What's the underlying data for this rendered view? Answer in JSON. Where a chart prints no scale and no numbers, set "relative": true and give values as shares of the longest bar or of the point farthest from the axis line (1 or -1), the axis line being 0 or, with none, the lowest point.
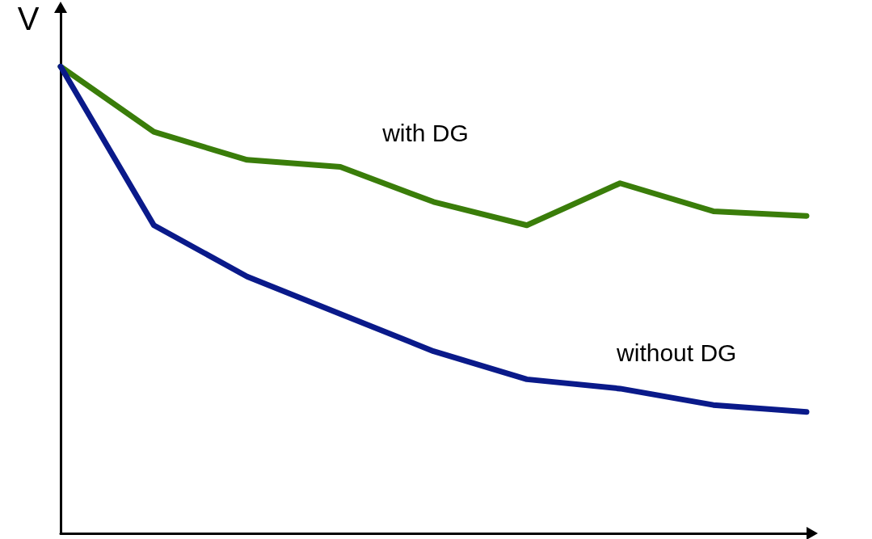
{
  "chart_data": {
    "type": "line",
    "ylabel": "V",
    "relative": true,
    "categories": [
      null,
      null,
      null,
      null,
      null,
      null,
      null,
      null,
      null
    ],
    "series": [
      {
        "name": "with DG",
        "color": "#3a7d0a",
        "values": [
          1,
          0.86,
          0.8,
          0.785,
          0.71,
          0.66,
          0.75,
          0.69,
          0.68
        ]
      },
      {
        "name": "without DG",
        "color": "#0a1a8a",
        "values": [
          1,
          0.66,
          0.55,
          0.47,
          0.39,
          0.33,
          0.31,
          0.275,
          0.26
        ]
      }
    ],
    "grid": false,
    "legend": false,
    "marker": "none",
    "line_style": "solid"
  }
}
